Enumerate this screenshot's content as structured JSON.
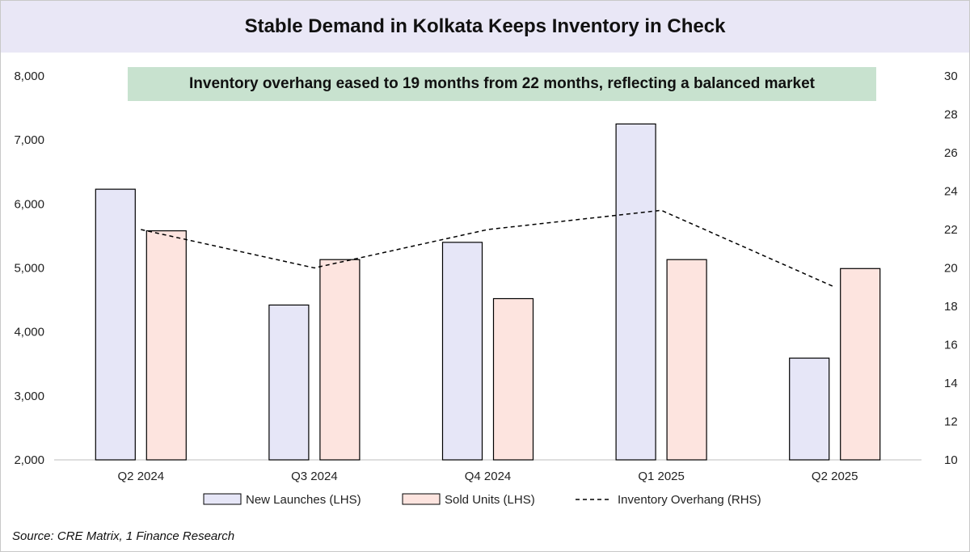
{
  "title": "Stable Demand in Kolkata Keeps Inventory in Check",
  "annotation": "Inventory overhang eased to 19 months from 22 months, reflecting a balanced market",
  "source": "Source: CRE Matrix, 1 Finance Research",
  "colors": {
    "title_bg": "#e9e7f6",
    "annotation_bg": "#c8e2cf",
    "launches_fill": "#e6e6f7",
    "sold_fill": "#fde4df",
    "bar_stroke": "#000000",
    "line": "#000000"
  },
  "chart_data": {
    "type": "bar",
    "categories": [
      "Q2 2024",
      "Q3 2024",
      "Q4 2024",
      "Q1 2025",
      "Q2 2025"
    ],
    "series": [
      {
        "name": "New Launches (LHS)",
        "type": "bar",
        "axis": "left",
        "values": [
          6230,
          4420,
          5400,
          7250,
          3590
        ]
      },
      {
        "name": "Sold Units (LHS)",
        "type": "bar",
        "axis": "left",
        "values": [
          5580,
          5130,
          4520,
          5130,
          4990
        ]
      },
      {
        "name": "Inventory Overhang (RHS)",
        "type": "line",
        "style": "dashed",
        "axis": "right",
        "values": [
          22,
          20,
          22,
          23,
          19
        ]
      }
    ],
    "left_axis": {
      "min": 2000,
      "max": 8000,
      "ticks": [
        "2,000",
        "3,000",
        "4,000",
        "5,000",
        "6,000",
        "7,000",
        "8,000"
      ]
    },
    "right_axis": {
      "min": 10,
      "max": 30,
      "ticks": [
        "10",
        "12",
        "14",
        "16",
        "18",
        "20",
        "22",
        "24",
        "26",
        "28",
        "30"
      ]
    },
    "legend_position": "bottom",
    "grid": false
  }
}
